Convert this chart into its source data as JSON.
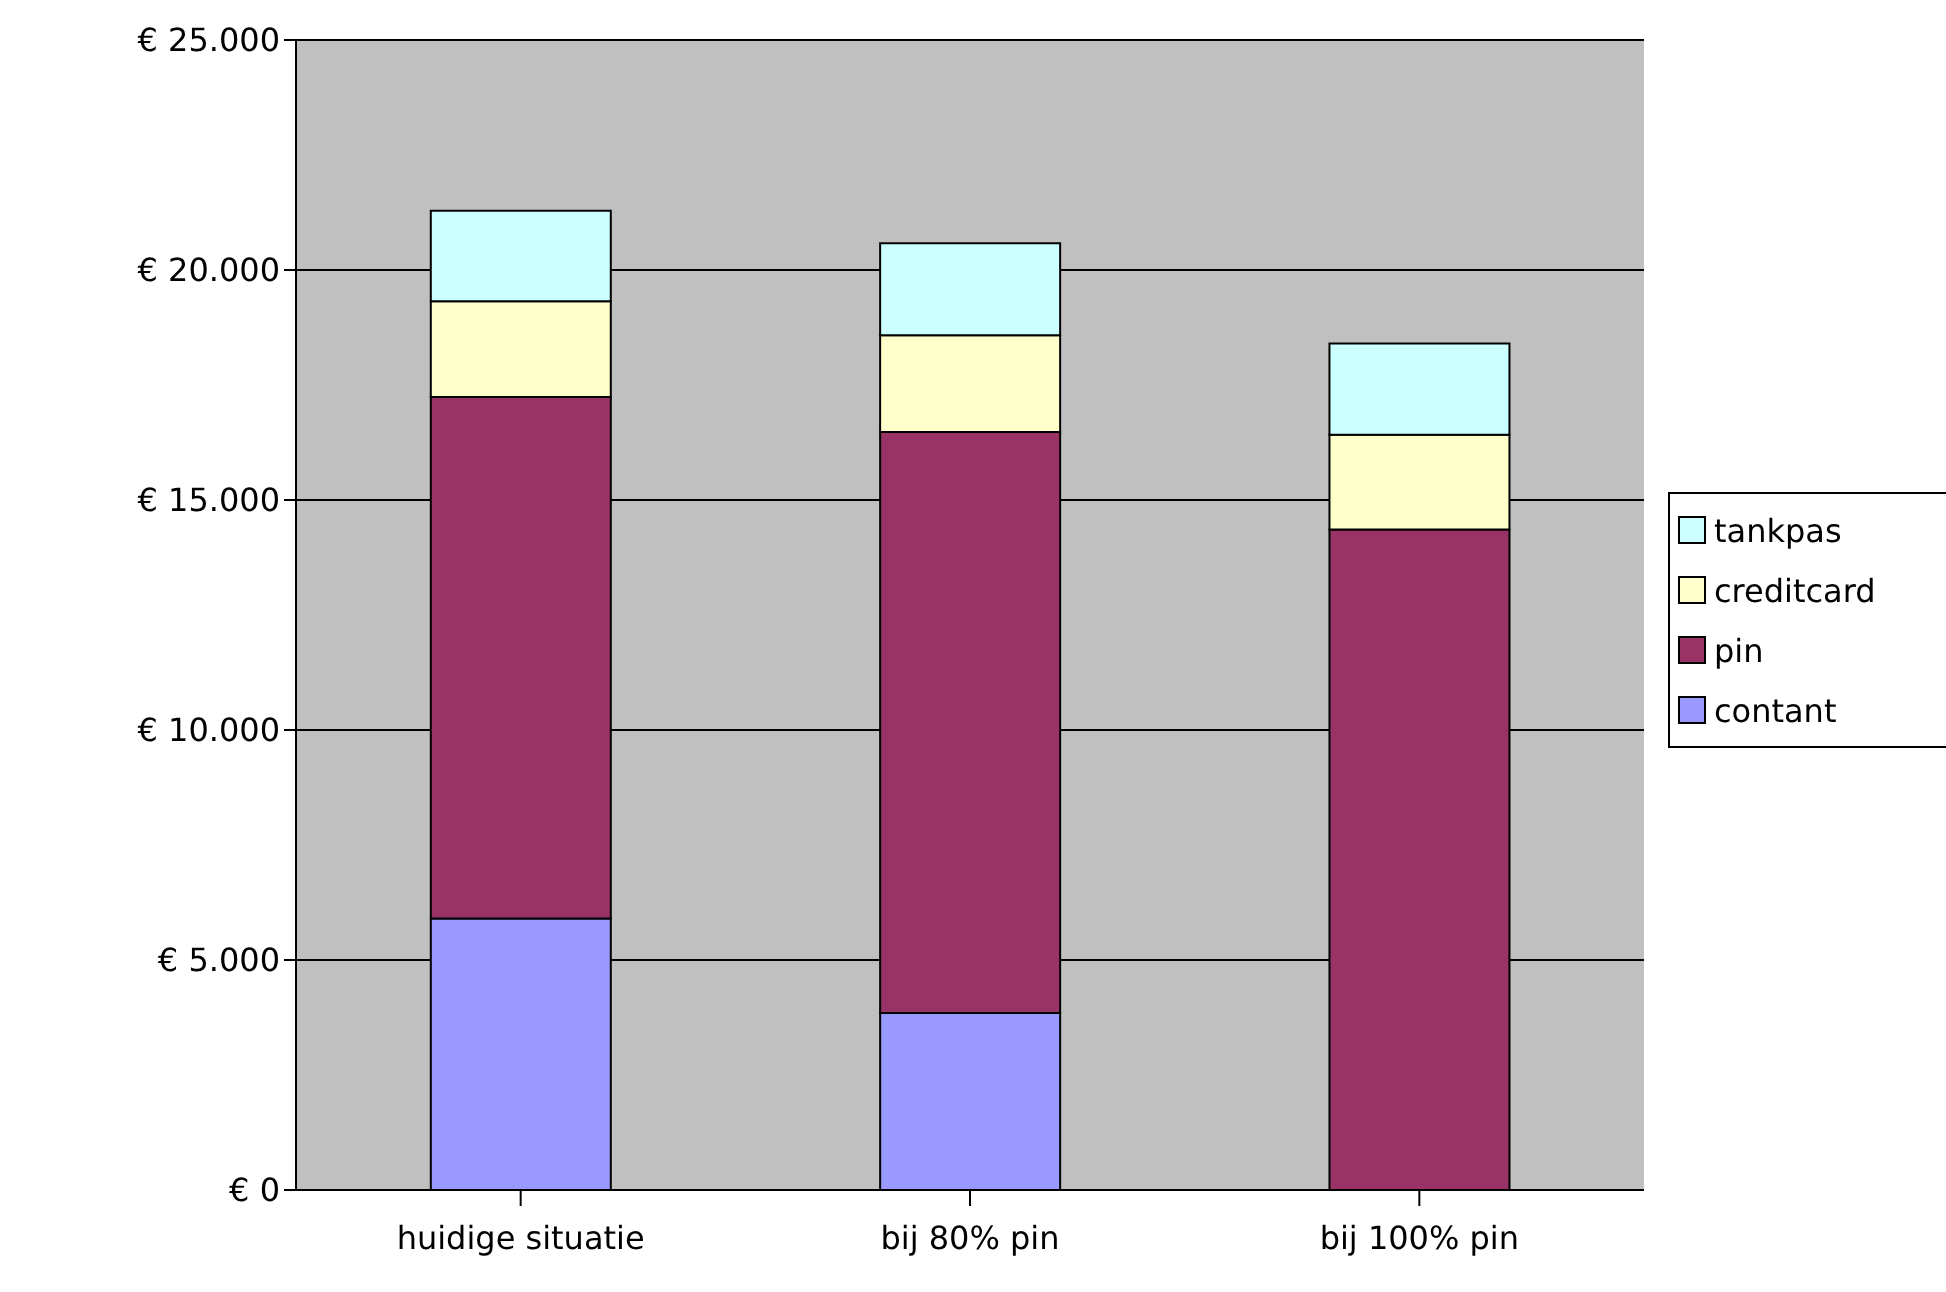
{
  "chart_data": {
    "type": "bar",
    "stacked": true,
    "categories": [
      "huidige situatie",
      "bij 80% pin",
      "bij 100% pin"
    ],
    "series": [
      {
        "name": "contant",
        "color": "#9999ff",
        "values": [
          5900,
          3850,
          0
        ]
      },
      {
        "name": "pin",
        "color": "#993366",
        "values": [
          11340,
          12630,
          14360
        ]
      },
      {
        "name": "creditcard",
        "color": "#ffffcc",
        "values": [
          2080,
          2100,
          2060
        ]
      },
      {
        "name": "tankpas",
        "color": "#ccffff",
        "values": [
          1970,
          2000,
          1980
        ]
      }
    ],
    "ylim": [
      0,
      25000
    ],
    "yticks": [
      {
        "value": 0,
        "label": "€ 0"
      },
      {
        "value": 5000,
        "label": "€ 5.000"
      },
      {
        "value": 10000,
        "label": "€ 10.000"
      },
      {
        "value": 15000,
        "label": "€ 15.000"
      },
      {
        "value": 20000,
        "label": "€ 20.000"
      },
      {
        "value": 25000,
        "label": "€ 25.000"
      }
    ],
    "grid": "y",
    "legend": "right"
  }
}
